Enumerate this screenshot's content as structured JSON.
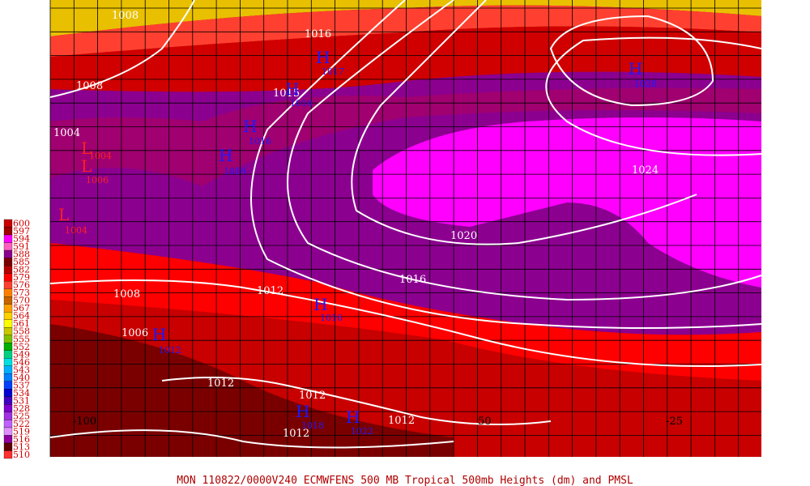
{
  "map": {
    "footer": "MON 110822/0000V240   ECMWFENS  500 MB Tropical 500mb Heights (dm) and PMSL",
    "legend": {
      "levels": [
        600,
        597,
        594,
        591,
        588,
        585,
        582,
        579,
        576,
        573,
        570,
        567,
        564,
        561,
        558,
        555,
        552,
        549,
        546,
        543,
        540,
        537,
        534,
        531,
        528,
        525,
        522,
        519,
        516,
        513,
        510
      ],
      "colors": [
        "#c80000",
        "#a00000",
        "#ff00ff",
        "#ff60c0",
        "#8c0090",
        "#7a0000",
        "#b40000",
        "#ff0000",
        "#ff4030",
        "#ff8000",
        "#c86400",
        "#ffa000",
        "#ffd000",
        "#ffff00",
        "#c8c800",
        "#80c000",
        "#00b000",
        "#00d080",
        "#00e0e0",
        "#00b0ff",
        "#0080ff",
        "#0040ff",
        "#0000d0",
        "#4000c0",
        "#8000d0",
        "#a030e0",
        "#c060ff",
        "#e090ff",
        "#9000a0",
        "#600000",
        "#ff3030"
      ]
    },
    "longitudes": [
      "-100",
      "50",
      "-25"
    ],
    "isobars": [
      "1008",
      "1016",
      "1008",
      "1004",
      "1015",
      "1024",
      "1020",
      "1016",
      "1012",
      "1008",
      "1006",
      "1012",
      "1012",
      "1012",
      "1012"
    ],
    "highs": [
      {
        "mark": "H",
        "value": "1017"
      },
      {
        "mark": "H",
        "value": "1016"
      },
      {
        "mark": "H",
        "value": "1016"
      },
      {
        "mark": "H",
        "value": "1016"
      },
      {
        "mark": "H",
        "value": "1028"
      },
      {
        "mark": "H",
        "value": "1016"
      },
      {
        "mark": "H",
        "value": "1012"
      },
      {
        "mark": "H",
        "value": "1018"
      },
      {
        "mark": "H",
        "value": "1022"
      }
    ],
    "lows": [
      {
        "mark": "L",
        "value": "1004"
      },
      {
        "mark": "L",
        "value": "1006"
      },
      {
        "mark": "L",
        "value": "1004"
      }
    ]
  }
}
